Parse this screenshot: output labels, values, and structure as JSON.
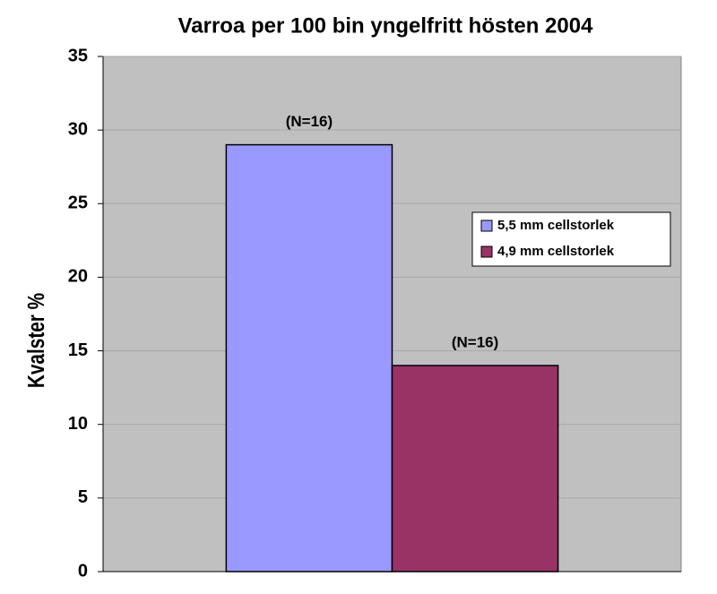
{
  "chart_data": {
    "type": "bar",
    "title": "Varroa per 100 bin yngelfritt hösten 2004",
    "y_label": "Kvalster %",
    "categories": [
      null
    ],
    "series": [
      {
        "name": "5,5 mm cellstorlek",
        "color": "#9999ff",
        "values": [
          29
        ]
      },
      {
        "name": "4,9 mm cellstorlek",
        "color": "#993366",
        "values": [
          14
        ]
      }
    ],
    "annotations": [
      "(N=16)",
      "(N=16)"
    ],
    "ylim": [
      0,
      35
    ],
    "yticks": [
      0,
      5,
      10,
      15,
      20,
      25,
      30,
      35
    ],
    "grid": true,
    "legend": "right",
    "background": "#c0c0c0"
  }
}
